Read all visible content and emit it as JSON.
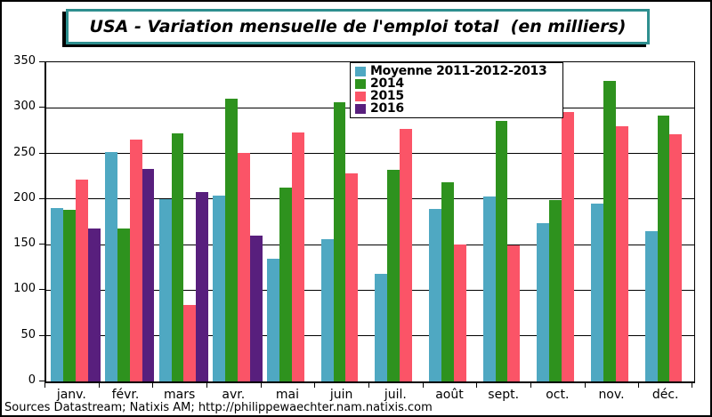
{
  "source_note": "Sources Datastream; Natixis AM; http://philippewaechter.nam.natixis.com",
  "chart_data": {
    "type": "bar",
    "title": "USA - Variation mensuelle de l'emploi total  (en milliers)",
    "xlabel": "",
    "ylabel": "",
    "ylim": [
      0,
      350
    ],
    "ytick_step": 50,
    "grid": true,
    "legend_position": "top-center",
    "categories": [
      "janv.",
      "févr.",
      "mars",
      "avr.",
      "mai",
      "juin",
      "juil.",
      "août",
      "sept.",
      "oct.",
      "nov.",
      "déc."
    ],
    "series": [
      {
        "name": "Moyenne 2011-2012-2013",
        "color": "#4FA8C2",
        "values": [
          190,
          252,
          200,
          204,
          135,
          156,
          118,
          189,
          203,
          174,
          195,
          165
        ]
      },
      {
        "name": "2014",
        "color": "#2E921E",
        "values": [
          188,
          168,
          272,
          310,
          213,
          306,
          232,
          218,
          286,
          199,
          330,
          292
        ]
      },
      {
        "name": "2015",
        "color": "#FB5467",
        "values": [
          221,
          265,
          84,
          251,
          273,
          228,
          277,
          150,
          149,
          295,
          280,
          271
        ]
      },
      {
        "name": "2016",
        "color": "#581F7D",
        "values": [
          168,
          233,
          208,
          160,
          null,
          null,
          null,
          null,
          null,
          null,
          null,
          null
        ]
      }
    ],
    "accent_border_color": "#2E8F8F"
  }
}
